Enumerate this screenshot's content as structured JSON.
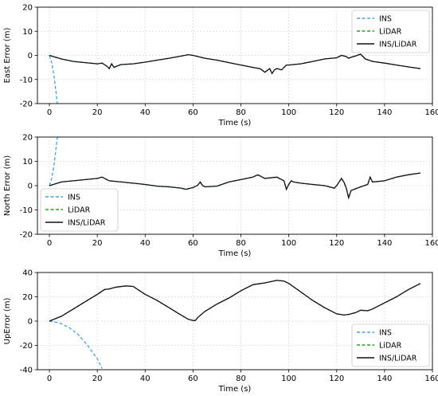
{
  "chart_data": [
    {
      "type": "line",
      "xlabel": "Time (s)",
      "ylabel": "East Error (m)",
      "xlim": [
        -5,
        160
      ],
      "ylim": [
        -20,
        20
      ],
      "xticks": [
        0,
        20,
        40,
        60,
        80,
        100,
        120,
        140,
        160
      ],
      "yticks": [
        -20,
        -10,
        0,
        10,
        20
      ],
      "grid": true,
      "legend": "top-right",
      "series": [
        {
          "name": "INS",
          "color": "#4a9fe0",
          "style": "dashed",
          "x": [
            0,
            1,
            2,
            3,
            4
          ],
          "y": [
            0,
            -3,
            -9,
            -17,
            -26
          ]
        },
        {
          "name": "LiDAR",
          "color": "#2ca02c",
          "style": "dashed",
          "x": [
            0,
            5,
            10,
            15,
            20,
            22,
            24,
            25,
            26,
            27,
            28,
            30,
            35,
            40,
            45,
            50,
            55,
            58,
            60,
            65,
            70,
            75,
            80,
            85,
            88,
            90,
            92,
            93,
            94,
            95,
            97,
            99,
            100,
            105,
            110,
            115,
            120,
            122,
            124,
            125,
            126,
            128,
            130,
            132,
            135,
            140,
            145,
            150,
            155
          ],
          "y": [
            0,
            -1.5,
            -2.5,
            -3,
            -3.5,
            -3.2,
            -4.5,
            -5.5,
            -3.5,
            -5,
            -4.5,
            -3.8,
            -3.5,
            -2.8,
            -2,
            -1.2,
            -0.3,
            0.3,
            0,
            -1.2,
            -2,
            -3,
            -4,
            -5,
            -5.5,
            -7,
            -5.5,
            -7.5,
            -6,
            -5.5,
            -6,
            -4,
            -4,
            -3.5,
            -2.5,
            -1.5,
            -1,
            0,
            -0.5,
            -1.2,
            -0.8,
            -0.2,
            0.5,
            -1.5,
            -2.5,
            -3.2,
            -4,
            -4.8,
            -5.5
          ]
        },
        {
          "name": "INS/LiDAR",
          "color": "#111111",
          "style": "solid",
          "x": [
            0,
            5,
            10,
            15,
            20,
            22,
            24,
            25,
            26,
            27,
            28,
            30,
            35,
            40,
            45,
            50,
            55,
            58,
            60,
            65,
            70,
            75,
            80,
            85,
            88,
            90,
            92,
            93,
            94,
            95,
            97,
            99,
            100,
            105,
            110,
            115,
            120,
            122,
            124,
            125,
            126,
            128,
            130,
            132,
            135,
            140,
            145,
            150,
            155
          ],
          "y": [
            0,
            -1.5,
            -2.5,
            -3,
            -3.5,
            -3.2,
            -4.5,
            -5.5,
            -3.5,
            -5,
            -4.5,
            -3.8,
            -3.5,
            -2.8,
            -2,
            -1.2,
            -0.3,
            0.3,
            0,
            -1.2,
            -2,
            -3,
            -4,
            -5,
            -5.5,
            -7,
            -5.5,
            -7.5,
            -6,
            -5.5,
            -6,
            -4,
            -4,
            -3.5,
            -2.5,
            -1.5,
            -1,
            0,
            -0.5,
            -1.2,
            -0.8,
            -0.2,
            0.5,
            -1.5,
            -2.5,
            -3.2,
            -4,
            -4.8,
            -5.5
          ]
        }
      ]
    },
    {
      "type": "line",
      "xlabel": "Time (s)",
      "ylabel": "North Error (m)",
      "xlim": [
        -5,
        160
      ],
      "ylim": [
        -20,
        20
      ],
      "xticks": [
        0,
        20,
        40,
        60,
        80,
        100,
        120,
        140,
        160
      ],
      "yticks": [
        -20,
        -10,
        0,
        10,
        20
      ],
      "grid": true,
      "legend": "bottom-left",
      "series": [
        {
          "name": "INS",
          "color": "#4a9fe0",
          "style": "dashed",
          "x": [
            0,
            1,
            2,
            3,
            4
          ],
          "y": [
            0,
            3,
            9,
            17,
            26
          ]
        },
        {
          "name": "LiDAR",
          "color": "#2ca02c",
          "style": "dashed",
          "x": [
            0,
            5,
            10,
            15,
            20,
            22,
            25,
            30,
            35,
            40,
            45,
            50,
            55,
            57,
            60,
            62,
            63,
            64,
            65,
            70,
            75,
            80,
            85,
            87,
            90,
            95,
            98,
            99,
            100,
            101,
            102,
            105,
            110,
            115,
            119,
            120,
            121,
            122,
            123,
            124,
            125,
            126,
            130,
            133,
            134,
            135,
            140,
            145,
            150,
            155
          ],
          "y": [
            0,
            1.5,
            2,
            2.5,
            3,
            3.5,
            2,
            1.5,
            1,
            0.5,
            -0.2,
            -0.5,
            -1,
            -1.5,
            -0.8,
            0.2,
            1.5,
            0,
            -0.5,
            -0.2,
            1.5,
            2.5,
            3.5,
            4.5,
            3,
            3.5,
            2,
            -1.5,
            0.5,
            2,
            1.5,
            1,
            0.5,
            0,
            -1,
            0,
            1.5,
            3,
            1.5,
            -1,
            -5,
            -2,
            -0.5,
            0.5,
            3.5,
            1.5,
            2,
            3.5,
            4.5,
            5.2
          ]
        },
        {
          "name": "INS/LiDAR",
          "color": "#111111",
          "style": "solid",
          "x": [
            0,
            5,
            10,
            15,
            20,
            22,
            25,
            30,
            35,
            40,
            45,
            50,
            55,
            57,
            60,
            62,
            63,
            64,
            65,
            70,
            75,
            80,
            85,
            87,
            90,
            95,
            98,
            99,
            100,
            101,
            102,
            105,
            110,
            115,
            119,
            120,
            121,
            122,
            123,
            124,
            125,
            126,
            130,
            133,
            134,
            135,
            140,
            145,
            150,
            155
          ],
          "y": [
            0,
            1.5,
            2,
            2.5,
            3,
            3.5,
            2,
            1.5,
            1,
            0.5,
            -0.2,
            -0.5,
            -1,
            -1.5,
            -0.8,
            0.2,
            1.5,
            0,
            -0.5,
            -0.2,
            1.5,
            2.5,
            3.5,
            4.5,
            3,
            3.5,
            2,
            -1.5,
            0.5,
            2,
            1.5,
            1,
            0.5,
            0,
            -1,
            0,
            1.5,
            3,
            1.5,
            -1,
            -5,
            -2,
            -0.5,
            0.5,
            3.5,
            1.5,
            2,
            3.5,
            4.5,
            5.2
          ]
        }
      ]
    },
    {
      "type": "line",
      "xlabel": "Time (s)",
      "ylabel": "UpError (m)",
      "xlim": [
        -5,
        160
      ],
      "ylim": [
        -40,
        40
      ],
      "xticks": [
        0,
        20,
        40,
        60,
        80,
        100,
        120,
        140,
        160
      ],
      "yticks": [
        -40,
        -20,
        0,
        20,
        40
      ],
      "grid": true,
      "legend": "bottom-right",
      "series": [
        {
          "name": "INS",
          "color": "#4a9fe0",
          "style": "dashed",
          "x": [
            0,
            4,
            8,
            12,
            16,
            20,
            22
          ],
          "y": [
            0,
            -1.3,
            -5,
            -11,
            -20,
            -31,
            -39
          ]
        },
        {
          "name": "LiDAR",
          "color": "#2ca02c",
          "style": "dashed",
          "x": [
            0,
            5,
            10,
            15,
            20,
            23,
            25,
            28,
            32,
            35,
            40,
            45,
            50,
            55,
            58,
            60,
            61,
            62,
            65,
            70,
            75,
            80,
            85,
            90,
            95,
            98,
            100,
            105,
            110,
            115,
            120,
            123,
            125,
            128,
            130,
            133,
            135,
            140,
            145,
            150,
            155
          ],
          "y": [
            0,
            4,
            10,
            16,
            22,
            26,
            26.5,
            28,
            29,
            28.5,
            22,
            17,
            11,
            5,
            1.5,
            0.5,
            0.5,
            3,
            8,
            14,
            19,
            25,
            30,
            31.5,
            33.5,
            33,
            31,
            24,
            17,
            11,
            6,
            5,
            5.5,
            7,
            9,
            8.5,
            10,
            15,
            20,
            26,
            31
          ]
        },
        {
          "name": "INS/LiDAR",
          "color": "#111111",
          "style": "solid",
          "x": [
            0,
            5,
            10,
            15,
            20,
            23,
            25,
            28,
            32,
            35,
            40,
            45,
            50,
            55,
            58,
            60,
            61,
            62,
            65,
            70,
            75,
            80,
            85,
            90,
            95,
            98,
            100,
            105,
            110,
            115,
            120,
            123,
            125,
            128,
            130,
            133,
            135,
            140,
            145,
            150,
            155
          ],
          "y": [
            0,
            4,
            10,
            16,
            22,
            26,
            26.5,
            28,
            29,
            28.5,
            22,
            17,
            11,
            5,
            1.5,
            0.5,
            0.5,
            3,
            8,
            14,
            19,
            25,
            30,
            31.5,
            33.5,
            33,
            31,
            24,
            17,
            11,
            6,
            5,
            5.5,
            7,
            9,
            8.5,
            10,
            15,
            20,
            26,
            31
          ]
        }
      ]
    }
  ]
}
